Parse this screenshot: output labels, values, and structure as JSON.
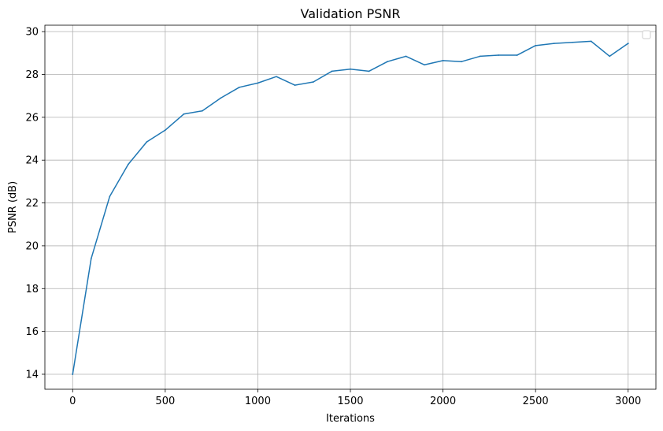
{
  "chart_data": {
    "type": "line",
    "title": "Validation PSNR",
    "xlabel": "Iterations",
    "ylabel": "PSNR (dB)",
    "xlim": [
      -150,
      3150
    ],
    "ylim": [
      13.3,
      30.3
    ],
    "xticks": [
      0,
      500,
      1000,
      1500,
      2000,
      2500,
      3000
    ],
    "yticks": [
      14,
      16,
      18,
      20,
      22,
      24,
      26,
      28,
      30
    ],
    "grid": true,
    "legend": "top-right",
    "series": [
      {
        "color": "#1f77b4",
        "x": [
          0,
          100,
          200,
          300,
          400,
          500,
          600,
          700,
          800,
          900,
          1000,
          1100,
          1200,
          1300,
          1400,
          1500,
          1600,
          1700,
          1800,
          1900,
          2000,
          2100,
          2200,
          2300,
          2400,
          2500,
          2600,
          2700,
          2800,
          2900,
          3000
        ],
        "y": [
          14.0,
          19.4,
          22.3,
          23.8,
          24.85,
          25.4,
          26.15,
          26.3,
          26.9,
          27.4,
          27.6,
          27.9,
          27.5,
          27.65,
          28.15,
          28.25,
          28.15,
          28.6,
          28.85,
          28.45,
          28.65,
          28.6,
          28.85,
          28.9,
          28.9,
          29.35,
          29.45,
          29.5,
          29.55,
          28.85,
          29.45
        ]
      }
    ]
  }
}
